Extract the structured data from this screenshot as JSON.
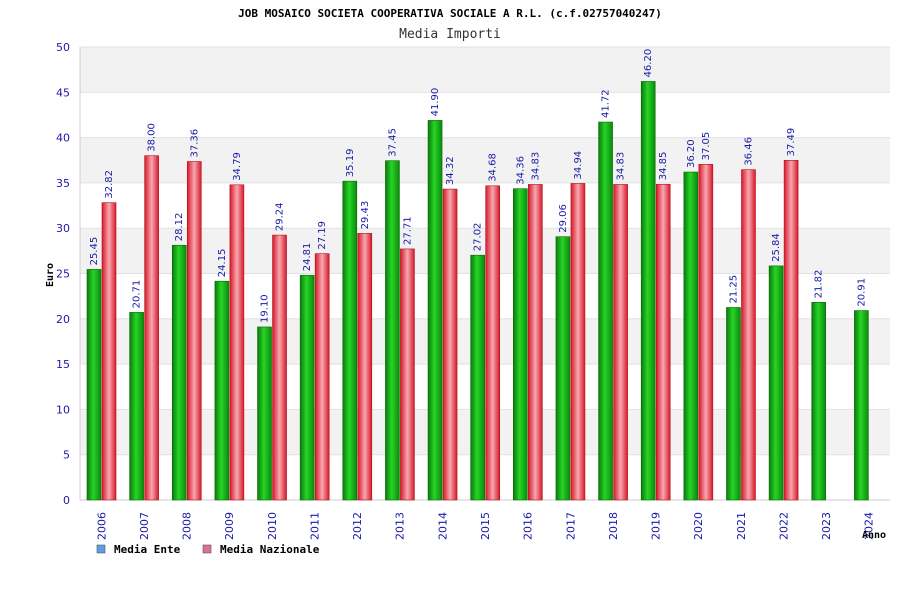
{
  "chart_data": {
    "type": "bar",
    "title": "JOB MOSAICO SOCIETA COOPERATIVA SOCIALE A R.L. (c.f.02757040247)",
    "subtitle": "Media Importi",
    "xlabel": "Anno",
    "ylabel": "Euro",
    "ylim": [
      0,
      50
    ],
    "yticks": [
      0,
      5,
      10,
      15,
      20,
      25,
      30,
      35,
      40,
      45,
      50
    ],
    "categories": [
      "2006",
      "2007",
      "2008",
      "2009",
      "2010",
      "2011",
      "2012",
      "2013",
      "2014",
      "2015",
      "2016",
      "2017",
      "2018",
      "2019",
      "2020",
      "2021",
      "2022",
      "2023",
      "2024"
    ],
    "series": [
      {
        "name": "Media Ente",
        "color": "#10b010",
        "legend_color": "#5aa0e8",
        "values": [
          25.45,
          20.71,
          28.12,
          24.15,
          19.1,
          24.81,
          35.19,
          37.45,
          41.9,
          27.02,
          34.36,
          29.06,
          41.72,
          46.2,
          36.2,
          21.25,
          25.84,
          21.82,
          20.91
        ],
        "labels": [
          "25.45",
          "20.71",
          "28.12",
          "24.15",
          "19.10",
          "24.81",
          "35.19",
          "37.45",
          "41.90",
          "27.02",
          "34.36",
          "29.06",
          "41.72",
          "46.20",
          "36.20",
          "21.25",
          "25.84",
          "21.82",
          "20.91"
        ]
      },
      {
        "name": "Media Nazionale",
        "color": "#e82a3a",
        "legend_color": "#e07090",
        "values": [
          32.82,
          38.0,
          37.36,
          34.79,
          29.24,
          27.19,
          29.43,
          27.71,
          34.32,
          34.68,
          34.83,
          34.94,
          34.83,
          34.85,
          37.05,
          36.46,
          37.49,
          null,
          null
        ],
        "labels": [
          "32.82",
          "38.00",
          "37.36",
          "34.79",
          "29.24",
          "27.19",
          "29.43",
          "27.71",
          "34.32",
          "34.68",
          "34.83",
          "34.94",
          "34.83",
          "34.85",
          "37.05",
          "36.46",
          "37.49",
          "",
          ""
        ]
      }
    ],
    "grid": true,
    "legend_position": "bottom-left"
  }
}
